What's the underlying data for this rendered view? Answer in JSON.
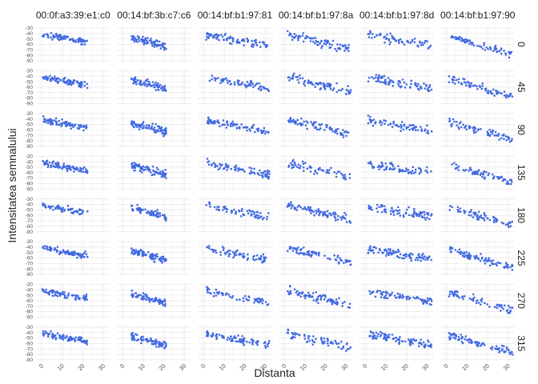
{
  "chart_data": {
    "type": "scatter",
    "xlabel": "Distanta",
    "ylabel": "Intensitatea semnalului",
    "x_ticks": [
      "0",
      "10",
      "20",
      "30"
    ],
    "y_ticks": [
      "-30",
      "-40",
      "-50",
      "-60",
      "-70",
      "-80",
      "-90"
    ],
    "xlim": [
      -3,
      33
    ],
    "ylim": [
      -93,
      -27
    ],
    "grid": true,
    "point_color": "#4169E1",
    "columns": [
      "00:0f:a3:39:e1:c0",
      "00:14:bf:3b:c7:c6",
      "00:14:bf:b1:97:81",
      "00:14:bf:b1:97:8a",
      "00:14:bf:b1:97:8d",
      "00:14:bf:b1:97:90"
    ],
    "rows": [
      "0",
      "45",
      "90",
      "135",
      "180",
      "225",
      "270",
      "315"
    ],
    "panel_trends": [
      {
        "mac": "00:0f:a3:39:e1:c0",
        "x_range": [
          0,
          22
        ],
        "y_start": -42,
        "y_end": -56,
        "spread": 6
      },
      {
        "mac": "00:14:bf:3b:c7:c6",
        "x_range": [
          4,
          21
        ],
        "y_start": -47,
        "y_end": -64,
        "spread": 7
      },
      {
        "mac": "00:14:bf:b1:97:81",
        "x_range": [
          1,
          32
        ],
        "y_start": -42,
        "y_end": -64,
        "spread": 7
      },
      {
        "mac": "00:14:bf:b1:97:8a",
        "x_range": [
          1,
          32
        ],
        "y_start": -42,
        "y_end": -68,
        "spread": 8
      },
      {
        "mac": "00:14:bf:b1:97:8d",
        "x_range": [
          1,
          32
        ],
        "y_start": -43,
        "y_end": -62,
        "spread": 8
      },
      {
        "mac": "00:14:bf:b1:97:90",
        "x_range": [
          1,
          32
        ],
        "y_start": -45,
        "y_end": -78,
        "spread": 7
      }
    ]
  }
}
